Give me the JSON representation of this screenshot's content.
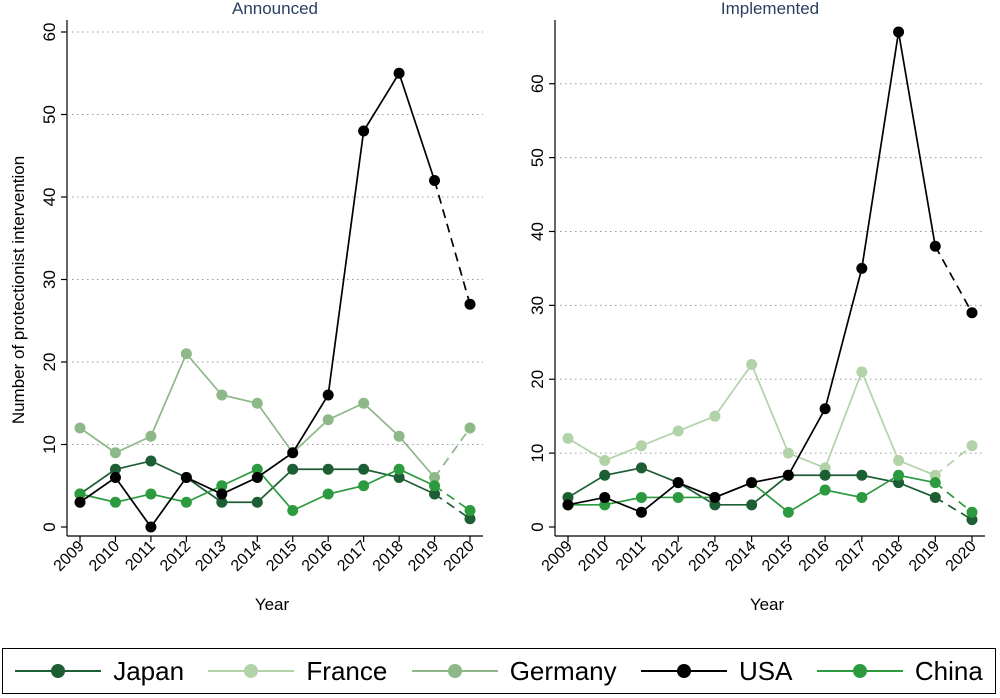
{
  "chart_data": [
    {
      "type": "line",
      "title": "Announced",
      "xlabel": "Year",
      "ylabel": "Number of protectionist intervention",
      "ylim": [
        0,
        60
      ],
      "yticks": [
        0,
        10,
        20,
        30,
        40,
        50,
        60
      ],
      "grid": "horizontal-dotted",
      "x": [
        "2009",
        "2010",
        "2011",
        "2012",
        "2013",
        "2014",
        "2015",
        "2016",
        "2017",
        "2018",
        "2019",
        "2020"
      ],
      "projection_from": "2019",
      "series": [
        {
          "name": "Japan",
          "values": [
            4,
            7,
            8,
            6,
            3,
            3,
            7,
            7,
            7,
            6,
            4,
            1
          ]
        },
        {
          "name": "France",
          "values": [
            4,
            7,
            8,
            6,
            3,
            3,
            7,
            7,
            7,
            6,
            4,
            1
          ]
        },
        {
          "name": "Germany",
          "values": [
            12,
            9,
            11,
            21,
            16,
            15,
            9,
            13,
            15,
            11,
            6,
            12
          ]
        },
        {
          "name": "USA",
          "values": [
            3,
            6,
            0,
            6,
            4,
            6,
            9,
            16,
            48,
            55,
            42,
            27
          ]
        },
        {
          "name": "China",
          "values": [
            4,
            3,
            4,
            3,
            5,
            7,
            2,
            4,
            5,
            7,
            5,
            2
          ]
        }
      ]
    },
    {
      "type": "line",
      "title": "Implemented",
      "xlabel": "Year",
      "ylabel": "",
      "ylim": [
        0,
        67
      ],
      "yticks": [
        0,
        10,
        20,
        30,
        40,
        50,
        60
      ],
      "grid": "horizontal-dotted",
      "x": [
        "2009",
        "2010",
        "2011",
        "2012",
        "2013",
        "2014",
        "2015",
        "2016",
        "2017",
        "2018",
        "2019",
        "2020"
      ],
      "projection_from": "2019",
      "series": [
        {
          "name": "Japan",
          "values": [
            4,
            7,
            8,
            6,
            3,
            3,
            7,
            7,
            7,
            6,
            4,
            1
          ]
        },
        {
          "name": "France",
          "values": [
            12,
            9,
            11,
            13,
            15,
            22,
            10,
            8,
            21,
            9,
            7,
            11
          ]
        },
        {
          "name": "Germany",
          "values": [
            12,
            9,
            11,
            13,
            15,
            22,
            10,
            8,
            21,
            9,
            7,
            11
          ]
        },
        {
          "name": "USA",
          "values": [
            3,
            4,
            2,
            6,
            4,
            6,
            7,
            16,
            35,
            67,
            38,
            29
          ]
        },
        {
          "name": "China",
          "values": [
            3,
            3,
            4,
            4,
            4,
            6,
            2,
            5,
            4,
            7,
            6,
            2
          ]
        }
      ]
    }
  ],
  "legend": {
    "placement": "bottom",
    "items": [
      {
        "name": "Japan",
        "color": "#1d5e34"
      },
      {
        "name": "France",
        "color": "#b2d2a8"
      },
      {
        "name": "Germany",
        "color": "#8db888"
      },
      {
        "name": "USA",
        "color": "#000000"
      },
      {
        "name": "China",
        "color": "#2c9a3e"
      }
    ]
  },
  "colors": {
    "Japan": "#1d5e34",
    "France": "#b2d2a8",
    "Germany": "#8db888",
    "USA": "#000000",
    "China": "#2c9a3e",
    "title": "#2a3f5f",
    "grid": "#9a9a9a"
  }
}
